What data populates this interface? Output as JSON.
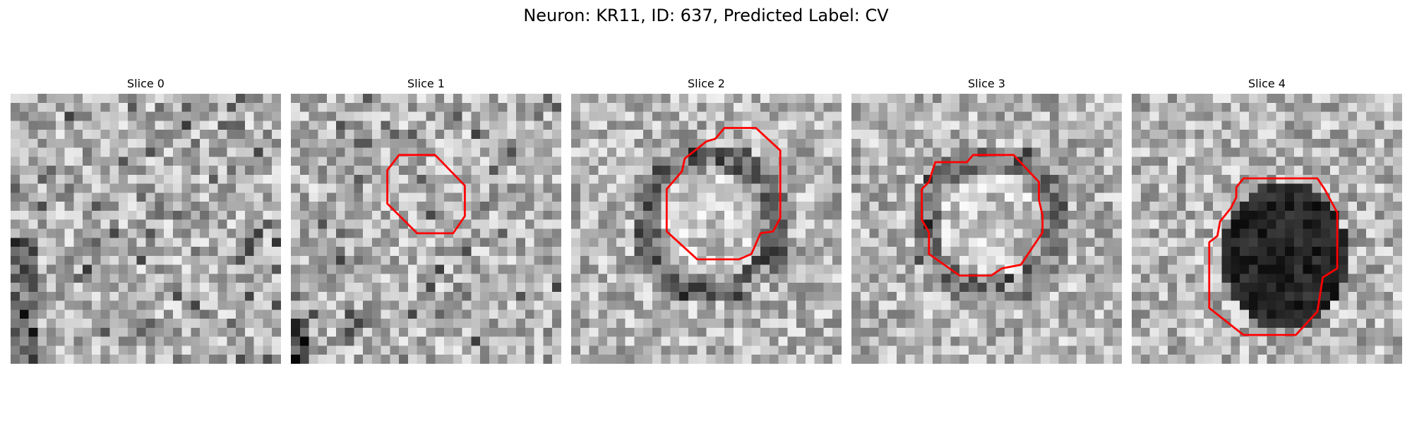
{
  "figure": {
    "title": "Neuron: KR11, ID: 637, Predicted Label: CV",
    "outline_color": "#ff0000"
  },
  "panels": [
    {
      "title": "Slice 0",
      "has_outline": false,
      "tone": "mottled"
    },
    {
      "title": "Slice 1",
      "has_outline": true,
      "tone": "light"
    },
    {
      "title": "Slice 2",
      "has_outline": true,
      "tone": "dark-ring"
    },
    {
      "title": "Slice 3",
      "has_outline": true,
      "tone": "dark-ring"
    },
    {
      "title": "Slice 4",
      "has_outline": true,
      "tone": "dark-core"
    }
  ]
}
